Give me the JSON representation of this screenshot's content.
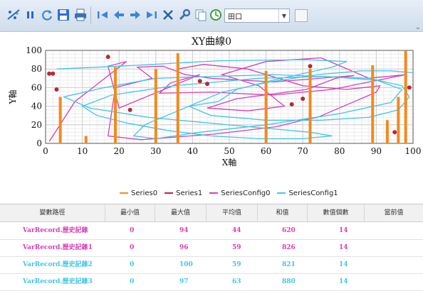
{
  "toolbar": {
    "buttons": [
      {
        "icon": "scatter-chart-icon"
      },
      {
        "icon": "pause-icon"
      },
      {
        "icon": "refresh-icon"
      },
      {
        "icon": "save-icon"
      },
      {
        "icon": "print-icon"
      },
      {
        "icon": "first-icon"
      },
      {
        "icon": "back-icon"
      },
      {
        "icon": "forward-icon"
      },
      {
        "icon": "last-icon"
      },
      {
        "icon": "clear-icon"
      },
      {
        "icon": "settings-icon"
      },
      {
        "icon": "copy-icon"
      },
      {
        "icon": "clock-icon"
      }
    ],
    "combo_value": "田口"
  },
  "chart_data": {
    "type": "scatter",
    "title": "XY曲線0",
    "xlabel": "X軸",
    "ylabel": "Y軸",
    "xlim": [
      0,
      100
    ],
    "ylim": [
      0,
      100
    ],
    "xticks": [
      0,
      10,
      20,
      30,
      40,
      50,
      60,
      70,
      80,
      90,
      100
    ],
    "yticks": [
      0,
      20,
      40,
      60,
      80,
      100
    ],
    "grid": true,
    "legend_position": "bottom",
    "series": [
      {
        "name": "Series0",
        "color": "#f28a1e",
        "style": "bars",
        "x": [
          4,
          11,
          19,
          30,
          36,
          60,
          72,
          89,
          93,
          96,
          98
        ],
        "y": [
          50,
          8,
          82,
          80,
          97,
          78,
          80,
          84,
          25,
          50,
          100
        ]
      },
      {
        "name": "Series1",
        "color": "#b5293a",
        "style": "points",
        "x": [
          1,
          2,
          3,
          17,
          23,
          42,
          44,
          67,
          70,
          72,
          95,
          99
        ],
        "y": [
          75,
          75,
          58,
          93,
          36,
          67,
          64,
          42,
          48,
          83,
          12,
          60
        ]
      },
      {
        "name": "SeriesConfig0",
        "color": "#d63fb4",
        "style": "line",
        "x": [
          1,
          8,
          22,
          17,
          20,
          42,
          34,
          31,
          45,
          62,
          78,
          98,
          88,
          75,
          60,
          48,
          58,
          65,
          55,
          44,
          52,
          71,
          79,
          84,
          62,
          45,
          38,
          32,
          25,
          29,
          19,
          17,
          26,
          46,
          63,
          70,
          74,
          90,
          91,
          82,
          70,
          55,
          43,
          36
        ],
        "y": [
          2,
          45,
          88,
          83,
          38,
          74,
          65,
          54,
          55,
          52,
          58,
          74,
          70,
          92,
          88,
          74,
          62,
          40,
          35,
          38,
          48,
          58,
          70,
          73,
          66,
          70,
          74,
          83,
          82,
          70,
          60,
          8,
          4,
          10,
          18,
          25,
          28,
          55,
          62,
          58,
          62,
          80,
          85,
          80
        ]
      },
      {
        "name": "SeriesConfig1",
        "color": "#41c5e8",
        "style": "line",
        "x": [
          3,
          20,
          48,
          71,
          82,
          78,
          70,
          62,
          52,
          47,
          39,
          45,
          60,
          75,
          88,
          96,
          99,
          97,
          88,
          62,
          30,
          16,
          5,
          12,
          28,
          55,
          72,
          78,
          70,
          58,
          45,
          33,
          22,
          14,
          10,
          18,
          35,
          58,
          76,
          90,
          97,
          94,
          80,
          60,
          42,
          30,
          24,
          27,
          36,
          48,
          61,
          74,
          86,
          94,
          100
        ],
        "y": [
          80,
          83,
          89,
          90,
          88,
          82,
          75,
          68,
          58,
          45,
          40,
          30,
          25,
          25,
          28,
          36,
          50,
          62,
          70,
          74,
          70,
          60,
          50,
          38,
          28,
          18,
          12,
          8,
          5,
          5,
          8,
          14,
          22,
          30,
          40,
          52,
          62,
          70,
          72,
          68,
          58,
          44,
          32,
          20,
          12,
          5,
          8,
          20,
          35,
          55,
          66,
          74,
          78,
          78,
          76
        ]
      }
    ]
  },
  "table": {
    "columns": [
      "變數路徑",
      "最小值",
      "最大值",
      "平均值",
      "和值",
      "數值個數",
      "當前值"
    ],
    "rows": [
      {
        "path": "VarRecord.歷史記錄",
        "min": "0",
        "max": "94",
        "avg": "44",
        "sum": "620",
        "count": "14",
        "current": "",
        "color": "#d63fb4"
      },
      {
        "path": "VarRecord.歷史記錄1",
        "min": "0",
        "max": "96",
        "avg": "59",
        "sum": "826",
        "count": "14",
        "current": "",
        "color": "#d63fb4"
      },
      {
        "path": "VarRecord.歷史記錄2",
        "min": "0",
        "max": "100",
        "avg": "59",
        "sum": "821",
        "count": "14",
        "current": "",
        "color": "#41c5e8"
      },
      {
        "path": "VarRecord.歷史記錄3",
        "min": "0",
        "max": "97",
        "avg": "63",
        "sum": "880",
        "count": "14",
        "current": "",
        "color": "#41c5e8"
      }
    ]
  }
}
